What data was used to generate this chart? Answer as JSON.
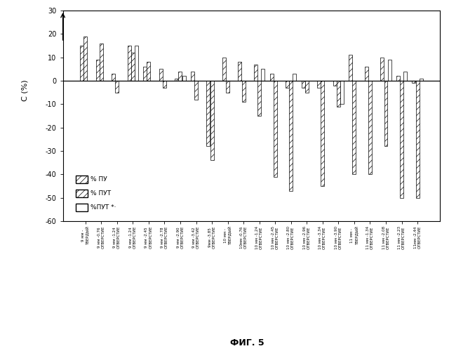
{
  "categories": [
    "9 мм -\nТВЕРДЫЙ",
    "9 мм -0.76\nОТВЕРСТИЕ",
    "9 мм -1.24\nОТВЕРСТИЕ",
    "9 мм -1.24\nОТВЕРСТИЕ",
    "9 мм -2.45\nОТВЕРСТИЕ",
    "9 мм -2.78\nОТВЕРСТИЕ",
    "9 мм -2.90\nОТВЕРСТИЕ",
    "9 мм -3.42\nОТВЕРСТИЕ",
    "9мм -3.85\nОТВЕРСТИЕ",
    "10 мм -\nТВЕРДЫЙ",
    "10мм -0.76\nОТВЕРСТИЕ",
    "10 мм -1.24\nОТВЕРСТИЕ",
    "10 мм -2.45\nОТВЕРСТИЕ",
    "10 мм -2.80\nОТВЕРСТИЕ",
    "10 мм -2.96\nОТВЕРСТИЕ",
    "10 мм -3.34\nОТВЕРСТИЕ",
    "10 мм -3.90\nОТВЕРСТИЕ",
    "11 мм -\nТВЕРДЫЙ",
    "11 мм -1.34\nОТВЕРСТИЕ",
    "11 мм -2.08\nОТВЕРСТИЕ",
    "11 мм -2.23\nОТВЕРСТИЕ",
    "11мм -2.44\nОТВЕРСТИЕ"
  ],
  "series1": [
    15,
    9,
    3,
    15,
    6,
    5,
    1,
    4,
    -28,
    10,
    8,
    7,
    3,
    -3,
    -3,
    -3,
    -2,
    11,
    6,
    10,
    2,
    -1
  ],
  "series2": [
    19,
    16,
    -5,
    12,
    8,
    -3,
    4,
    -8,
    -34,
    -5,
    -9,
    -15,
    -41,
    -47,
    -5,
    -45,
    -11,
    -40,
    -40,
    -28,
    -50,
    -50
  ],
  "series3": [
    0,
    0,
    0,
    15,
    0,
    0,
    2,
    0,
    0,
    0,
    0,
    5,
    0,
    3,
    0,
    0,
    -10,
    0,
    0,
    9,
    4,
    1
  ],
  "ylim": [
    -60,
    30
  ],
  "yticks": [
    -60,
    -50,
    -40,
    -30,
    -20,
    -10,
    0,
    10,
    20,
    30
  ],
  "fig_label": "ФИГ. 5",
  "bg_color": "#ffffff"
}
